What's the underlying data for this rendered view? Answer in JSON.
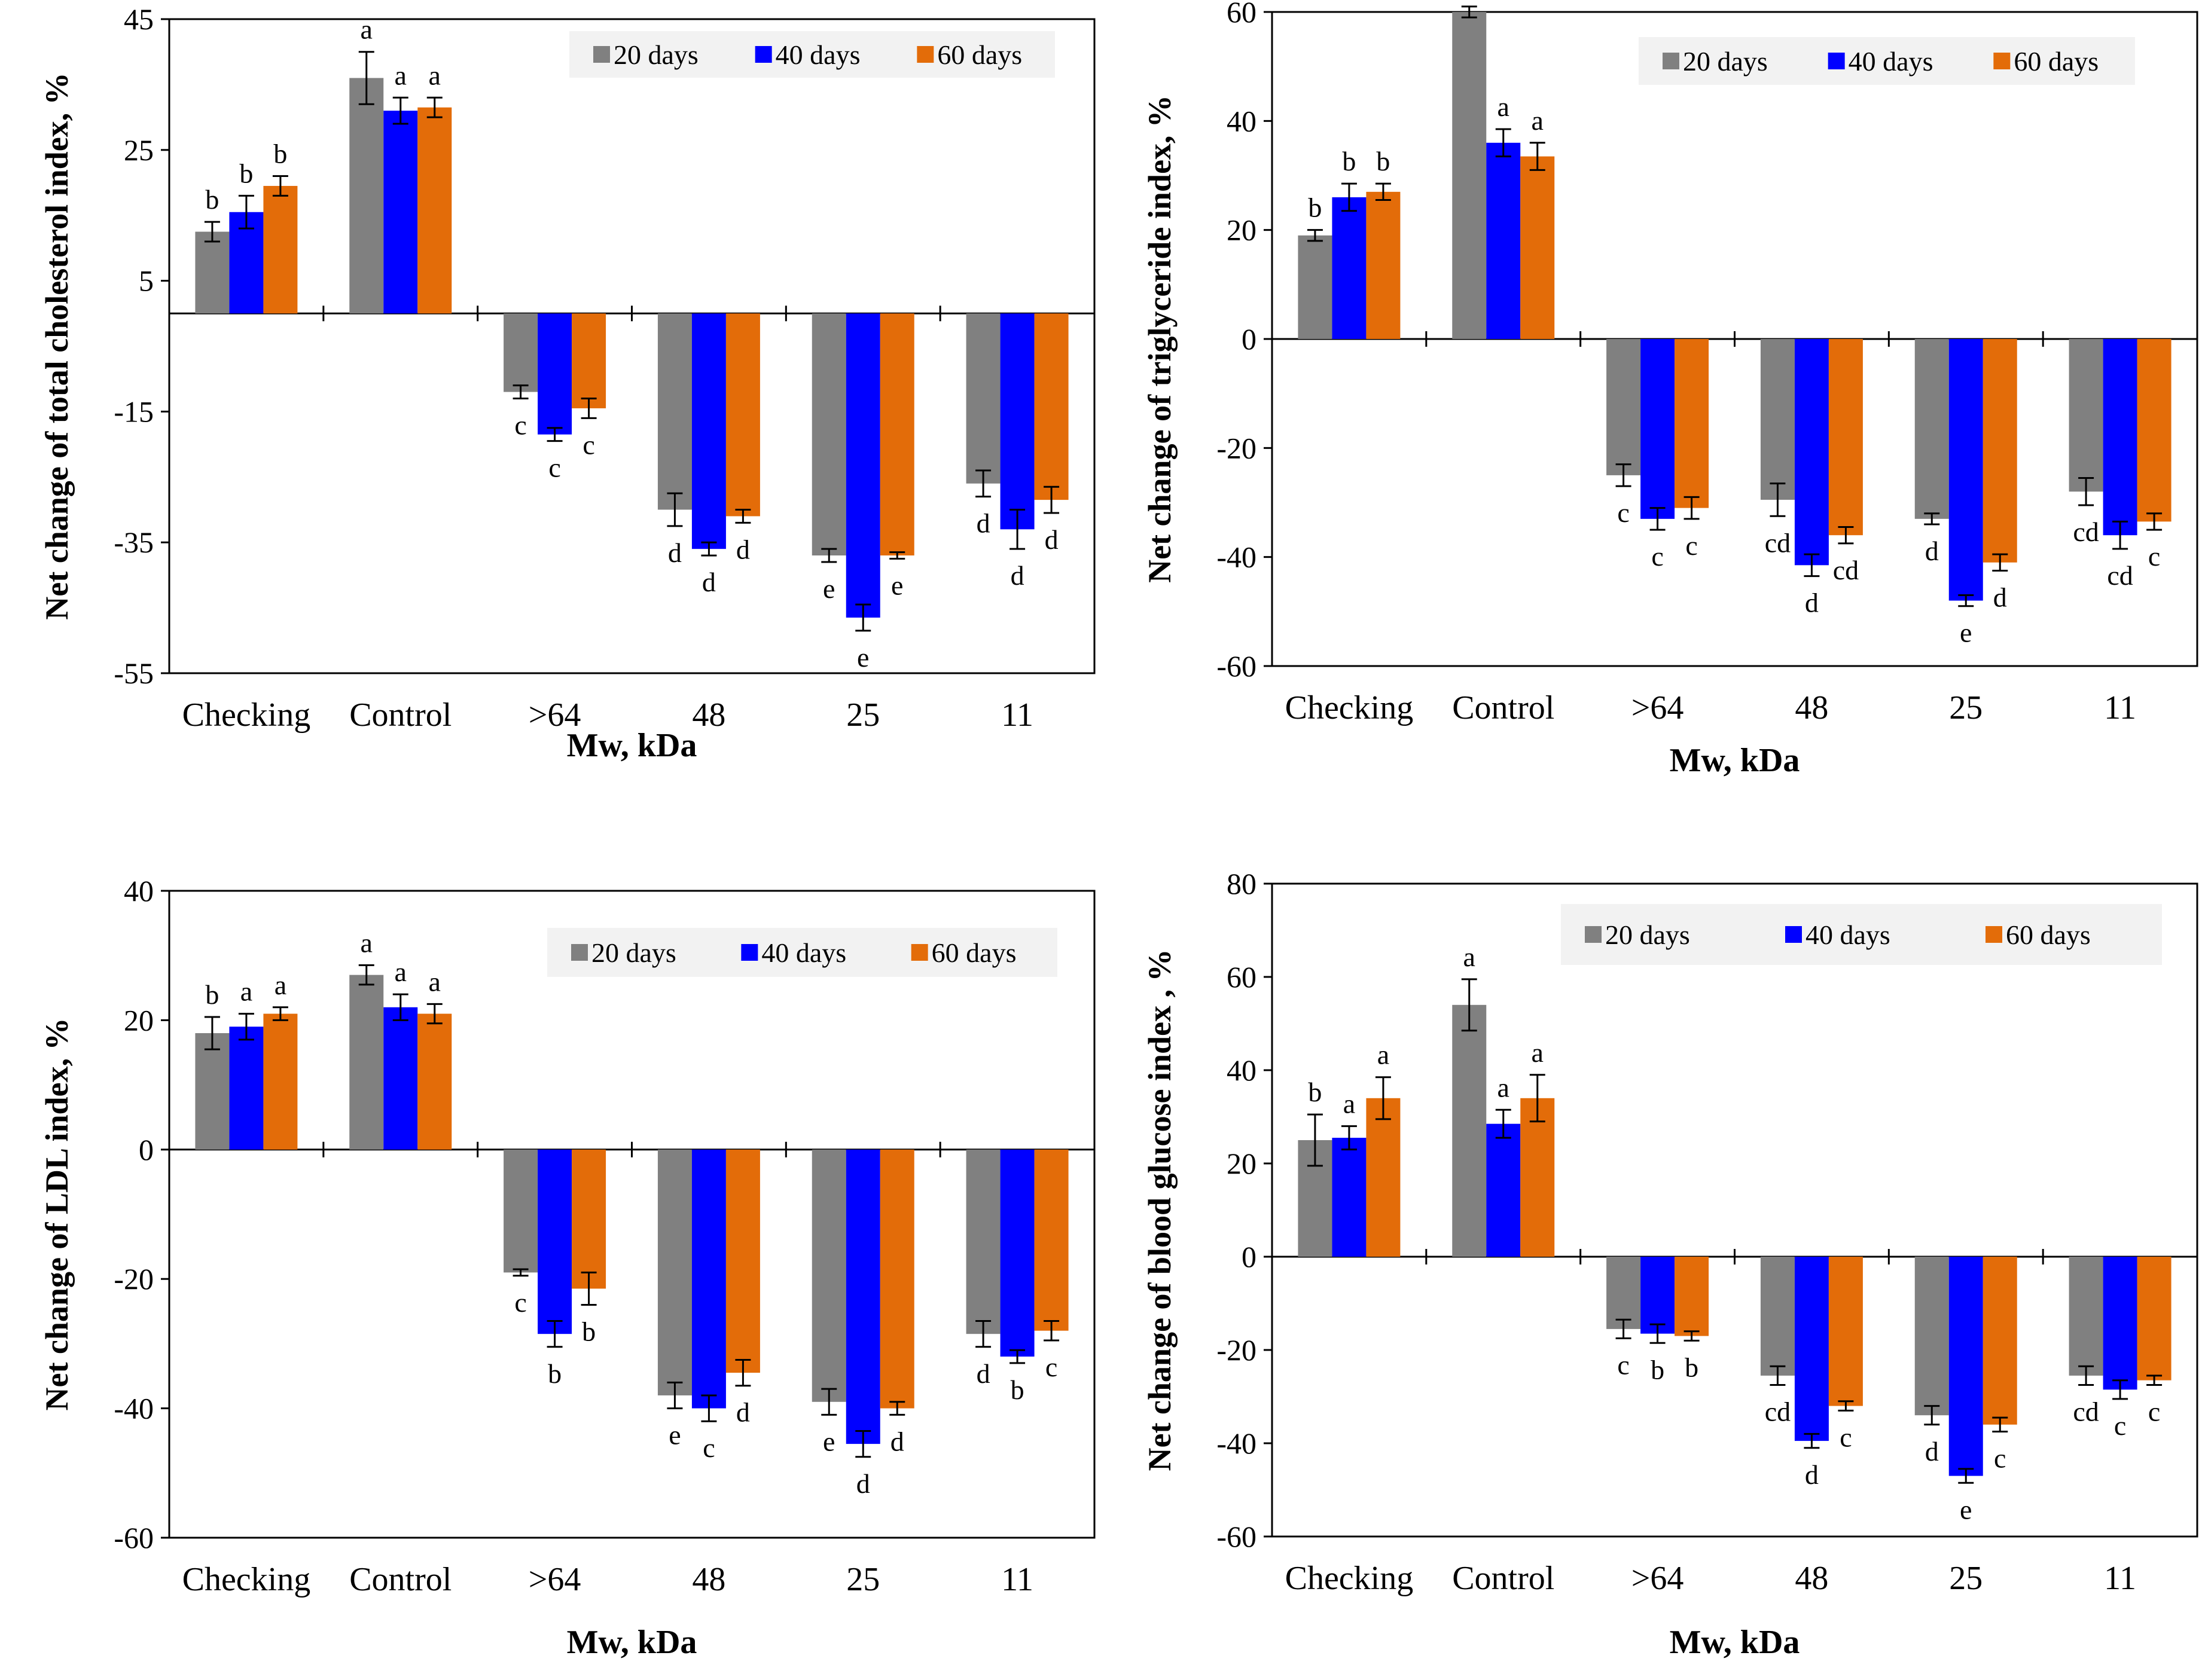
{
  "colors": {
    "20 days": "#808080",
    "40 days": "#0000ff",
    "60 days": "#e36c09",
    "legend_bg": "#f2f2f2"
  },
  "chart_data": [
    {
      "type": "bar",
      "ylabel": "Net change of total cholesterol index, %",
      "xlabel": "Mw, kDa",
      "categories": [
        "Checking",
        "Control",
        ">64",
        "48",
        "25",
        "11"
      ],
      "ylim": [
        -55,
        45
      ],
      "yticks": [
        45,
        25,
        5,
        -15,
        -35,
        -55
      ],
      "ytick_labels": [
        "45",
        "25",
        "5",
        "-15",
        "-35",
        "-55"
      ],
      "legend": [
        "20 days",
        "40 days",
        "60 days"
      ],
      "legend_position": "top-right",
      "series": [
        {
          "name": "20 days",
          "values": [
            12.5,
            36,
            -12,
            -30,
            -37,
            -26
          ],
          "errors": [
            1.5,
            4,
            1,
            2.5,
            1,
            2
          ],
          "letters": [
            "b",
            "a",
            "c",
            "d",
            "e",
            "d"
          ]
        },
        {
          "name": "40 days",
          "values": [
            15.5,
            31,
            -18.5,
            -36,
            -46.5,
            -33
          ],
          "errors": [
            2.5,
            2,
            1,
            1,
            2,
            3
          ],
          "letters": [
            "b",
            "a",
            "c",
            "d",
            "e",
            "d"
          ]
        },
        {
          "name": "60 days",
          "values": [
            19.5,
            31.5,
            -14.5,
            -31,
            -37,
            -28.5
          ],
          "errors": [
            1.5,
            1.5,
            1.5,
            1,
            0.5,
            2
          ],
          "letters": [
            "b",
            "a",
            "c",
            "d",
            "e",
            "d"
          ]
        }
      ]
    },
    {
      "type": "bar",
      "ylabel": "Net change of triglyceride index, %",
      "xlabel": "Mw, kDa",
      "categories": [
        "Checking",
        "Control",
        ">64",
        "48",
        "25",
        "11"
      ],
      "ylim": [
        -60,
        60
      ],
      "yticks": [
        60,
        40,
        20,
        0,
        -20,
        -40,
        -60
      ],
      "ytick_labels": [
        "60",
        "40",
        "20",
        "0",
        "-20",
        "-40",
        "-60"
      ],
      "legend": [
        "20 days",
        "40 days",
        "60 days"
      ],
      "legend_position": "top-right",
      "series": [
        {
          "name": "20 days",
          "values": [
            19,
            60,
            -25,
            -29.5,
            -33,
            -28
          ],
          "errors": [
            1,
            1,
            2,
            3,
            1,
            2.5
          ],
          "letters": [
            "b",
            "a",
            "c",
            "cd",
            "d",
            "cd"
          ]
        },
        {
          "name": "40 days",
          "values": [
            26,
            36,
            -33,
            -41.5,
            -48,
            -36
          ],
          "errors": [
            2.5,
            2.5,
            2,
            2,
            1,
            2.5
          ],
          "letters": [
            "b",
            "a",
            "c",
            "d",
            "e",
            "cd"
          ]
        },
        {
          "name": "60 days",
          "values": [
            27,
            33.5,
            -31,
            -36,
            -41,
            -33.5
          ],
          "errors": [
            1.5,
            2.5,
            2,
            1.5,
            1.5,
            1.5
          ],
          "letters": [
            "b",
            "a",
            "c",
            "cd",
            "d",
            "c"
          ]
        }
      ]
    },
    {
      "type": "bar",
      "ylabel": "Net change of LDL index, %",
      "xlabel": "Mw, kDa",
      "categories": [
        "Checking",
        "Control",
        ">64",
        "48",
        "25",
        "11"
      ],
      "ylim": [
        -60,
        40
      ],
      "yticks": [
        40,
        20,
        0,
        -20,
        -40,
        -60
      ],
      "ytick_labels": [
        "40",
        "20",
        "0",
        "-20",
        "-40",
        "-60"
      ],
      "legend": [
        "20 days",
        "40 days",
        "60 days"
      ],
      "legend_position": "top-right",
      "series": [
        {
          "name": "20 days",
          "values": [
            18,
            27,
            -19,
            -38,
            -39,
            -28.5
          ],
          "errors": [
            2.5,
            1.5,
            0.5,
            2,
            2,
            2
          ],
          "letters": [
            "b",
            "a",
            "c",
            "e",
            "e",
            "d"
          ]
        },
        {
          "name": "40 days",
          "values": [
            19,
            22,
            -28.5,
            -40,
            -45.5,
            -32
          ],
          "errors": [
            2,
            2,
            2,
            2,
            2,
            1
          ],
          "letters": [
            "a",
            "a",
            "b",
            "c",
            "d",
            "b"
          ]
        },
        {
          "name": "60 days",
          "values": [
            21,
            21,
            -21.5,
            -34.5,
            -40,
            -28
          ],
          "errors": [
            1,
            1.5,
            2.5,
            2,
            1,
            1.5
          ],
          "letters": [
            "a",
            "a",
            "b",
            "d",
            "d",
            "c"
          ]
        }
      ]
    },
    {
      "type": "bar",
      "ylabel": "Net change of blood glucose index , %",
      "xlabel": "Mw, kDa",
      "categories": [
        "Checking",
        "Control",
        ">64",
        "48",
        "25",
        "11"
      ],
      "ylim": [
        -60,
        80
      ],
      "yticks": [
        80,
        60,
        40,
        20,
        0,
        -20,
        -40,
        -60
      ],
      "ytick_labels": [
        "80",
        "60",
        "40",
        "20",
        "0",
        "-20",
        "-40",
        "-60"
      ],
      "legend": [
        "20 days",
        "40 days",
        "60 days"
      ],
      "legend_position": "top-right",
      "series": [
        {
          "name": "20 days",
          "values": [
            25,
            54,
            -15.5,
            -25.5,
            -34,
            -25.5
          ],
          "errors": [
            5.5,
            5.5,
            2,
            2,
            2,
            2
          ],
          "letters": [
            "b",
            "a",
            "c",
            "cd",
            "d",
            "cd"
          ]
        },
        {
          "name": "40 days",
          "values": [
            25.5,
            28.5,
            -16.5,
            -39.5,
            -47,
            -28.5
          ],
          "errors": [
            2.5,
            3,
            2,
            1.5,
            1.5,
            2
          ],
          "letters": [
            "a",
            "a",
            "b",
            "d",
            "e",
            "c"
          ]
        },
        {
          "name": "60 days",
          "values": [
            34,
            34,
            -17,
            -32,
            -36,
            -26.5
          ],
          "errors": [
            4.5,
            5,
            1,
            1,
            1.5,
            1
          ],
          "letters": [
            "a",
            "a",
            "b",
            "c",
            "c",
            "c"
          ]
        }
      ]
    }
  ]
}
